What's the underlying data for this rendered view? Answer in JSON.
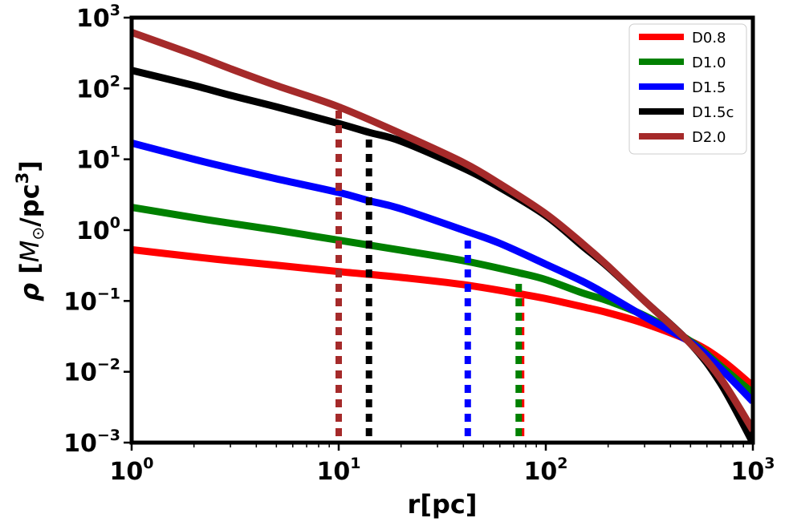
{
  "chart_data": {
    "type": "line",
    "x_scale": "log",
    "y_scale": "log",
    "xlim": [
      1,
      1000
    ],
    "ylim": [
      0.001,
      1000
    ],
    "xlabel": "r[pc]",
    "ylabel": "ρ [M⊙/pc³]",
    "ylabel_parts": {
      "rho": "ρ",
      "open": " [",
      "M": "M",
      "sun": "⊙",
      "unit": "/pc",
      "exp": "3",
      "close": "]"
    },
    "x_ticks": [
      {
        "value": 1,
        "base": "10",
        "exp": "0"
      },
      {
        "value": 10,
        "base": "10",
        "exp": "1"
      },
      {
        "value": 100,
        "base": "10",
        "exp": "2"
      },
      {
        "value": 1000,
        "base": "10",
        "exp": "3"
      }
    ],
    "y_ticks": [
      {
        "value": 1000,
        "base": "10",
        "exp": "3"
      },
      {
        "value": 100,
        "base": "10",
        "exp": "2"
      },
      {
        "value": 10,
        "base": "10",
        "exp": "1"
      },
      {
        "value": 1,
        "base": "10",
        "exp": "0"
      },
      {
        "value": 0.1,
        "base": "10",
        "exp": "−1"
      },
      {
        "value": 0.01,
        "base": "10",
        "exp": "−2"
      },
      {
        "value": 0.001,
        "base": "10",
        "exp": "−3"
      }
    ],
    "legend_position": "top-right",
    "grid": false,
    "series": [
      {
        "name": "D0.8",
        "color": "#ff0000",
        "x": [
          1,
          2,
          3,
          5,
          10,
          20,
          40,
          76,
          100,
          150,
          200,
          300,
          500,
          700,
          1000
        ],
        "y": [
          0.53,
          0.42,
          0.37,
          0.32,
          0.26,
          0.215,
          0.17,
          0.125,
          0.108,
          0.083,
          0.068,
          0.048,
          0.027,
          0.015,
          0.0063
        ],
        "rc": 76,
        "rc_top": 0.13
      },
      {
        "name": "D1.0",
        "color": "#008000",
        "x": [
          1,
          2,
          3,
          5,
          10,
          20,
          40,
          74,
          100,
          150,
          200,
          300,
          500,
          700,
          1000
        ],
        "y": [
          2.1,
          1.5,
          1.25,
          1.0,
          0.72,
          0.52,
          0.37,
          0.25,
          0.2,
          0.13,
          0.1,
          0.062,
          0.027,
          0.012,
          0.005
        ],
        "rc": 74,
        "rc_top": 0.2
      },
      {
        "name": "D1.5",
        "color": "#0000ff",
        "x": [
          1,
          2,
          3,
          5,
          10,
          14,
          20,
          42,
          60,
          100,
          150,
          200,
          300,
          500,
          700,
          1000
        ],
        "y": [
          17,
          10,
          7.5,
          5.3,
          3.4,
          2.6,
          2.0,
          0.95,
          0.65,
          0.33,
          0.19,
          0.12,
          0.06,
          0.026,
          0.011,
          0.0038
        ],
        "rc": 42,
        "rc_top": 0.9
      },
      {
        "name": "D1.5c",
        "color": "#000000",
        "x": [
          1,
          2,
          3,
          5,
          10,
          14,
          20,
          40,
          60,
          100,
          150,
          200,
          300,
          500,
          700,
          1000
        ],
        "y": [
          180,
          110,
          80,
          55,
          32,
          24,
          18,
          7.5,
          4.0,
          1.6,
          0.6,
          0.3,
          0.1,
          0.025,
          0.0068,
          0.001
        ],
        "rc": 14,
        "rc_top": 20
      },
      {
        "name": "D2.0",
        "color": "#a52a2a",
        "x": [
          1,
          2,
          3,
          5,
          10,
          20,
          40,
          60,
          100,
          150,
          200,
          300,
          500,
          700,
          1000
        ],
        "y": [
          620,
          300,
          190,
          110,
          55,
          23,
          9.0,
          4.5,
          1.7,
          0.65,
          0.31,
          0.1,
          0.025,
          0.008,
          0.0015
        ],
        "rc": 10,
        "rc_top": 60
      }
    ]
  }
}
